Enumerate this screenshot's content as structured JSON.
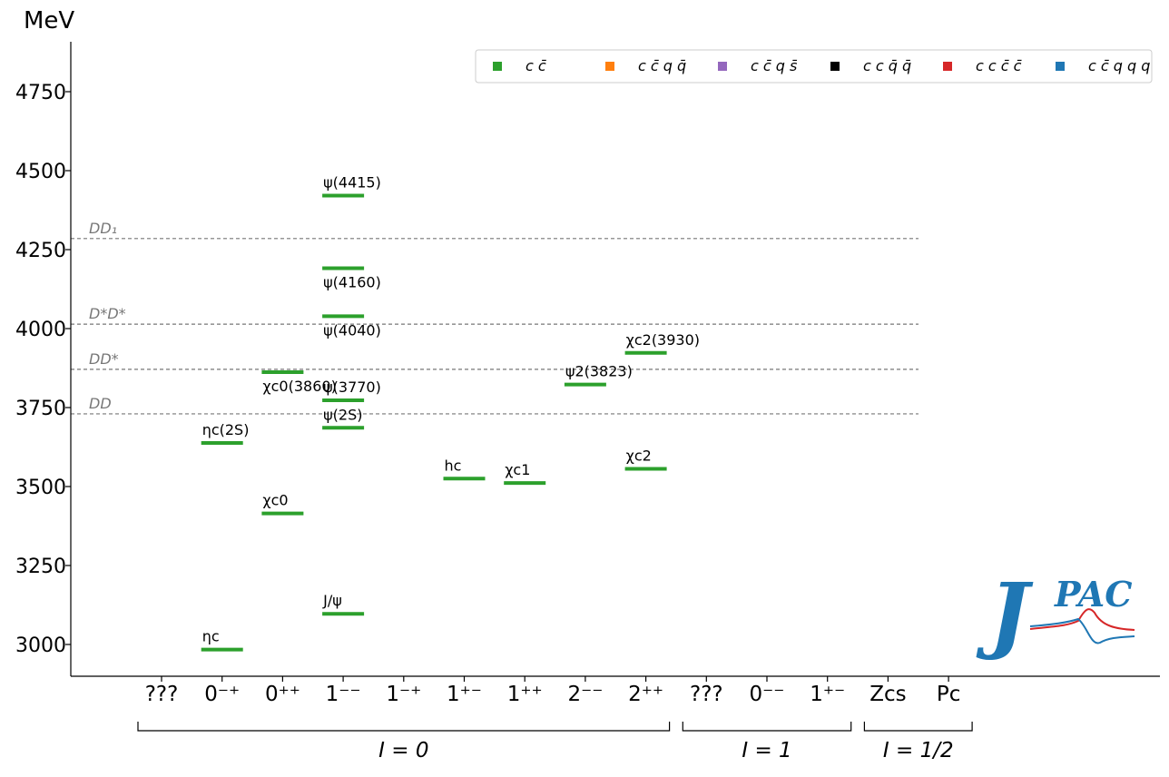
{
  "chart_data": {
    "type": "level-spectrum",
    "ylabel": "MeV",
    "ylim": [
      2900,
      4890
    ],
    "yticks": [
      3000,
      3250,
      3500,
      3750,
      4000,
      4250,
      4500,
      4750
    ],
    "categories": [
      "???",
      "0⁻⁺",
      "0⁺⁺",
      "1⁻⁻",
      "1⁻⁺",
      "1⁺⁻",
      "1⁺⁺",
      "2⁻⁻",
      "2⁺⁺",
      "???",
      "0⁻⁻",
      "1⁺⁻",
      "Zcs",
      "Pc"
    ],
    "groups": [
      {
        "label": "I = 0",
        "from": 0,
        "to": 8
      },
      {
        "label": "I = 1",
        "from": 9,
        "to": 11
      },
      {
        "label": "I = 1/2",
        "from": 12,
        "to": 13
      }
    ],
    "thresholds": [
      {
        "label": "DD",
        "value": 3730
      },
      {
        "label": "DD*",
        "value": 3871
      },
      {
        "label": "D*D*",
        "value": 4014
      },
      {
        "label": "DD₁",
        "value": 4285
      }
    ],
    "states": [
      {
        "name": "ηc",
        "category": 1,
        "mass": 2984,
        "label_pos": "above"
      },
      {
        "name": "ηc(2S)",
        "category": 1,
        "mass": 3638,
        "label_pos": "above"
      },
      {
        "name": "χc0",
        "category": 2,
        "mass": 3415,
        "label_pos": "above"
      },
      {
        "name": "χc0(3860)",
        "category": 2,
        "mass": 3862,
        "label_pos": "below"
      },
      {
        "name": "J/ψ",
        "category": 3,
        "mass": 3097,
        "label_pos": "above"
      },
      {
        "name": "ψ(2S)",
        "category": 3,
        "mass": 3686,
        "label_pos": "above"
      },
      {
        "name": "ψ(3770)",
        "category": 3,
        "mass": 3773,
        "label_pos": "above"
      },
      {
        "name": "ψ(4040)",
        "category": 3,
        "mass": 4039,
        "label_pos": "below"
      },
      {
        "name": "ψ(4160)",
        "category": 3,
        "mass": 4191,
        "label_pos": "below"
      },
      {
        "name": "ψ(4415)",
        "category": 3,
        "mass": 4421,
        "label_pos": "above"
      },
      {
        "name": "hc",
        "category": 5,
        "mass": 3525,
        "label_pos": "above"
      },
      {
        "name": "χc1",
        "category": 6,
        "mass": 3511,
        "label_pos": "above"
      },
      {
        "name": "ψ2(3823)",
        "category": 7,
        "mass": 3823,
        "label_pos": "above"
      },
      {
        "name": "χc2",
        "category": 8,
        "mass": 3556,
        "label_pos": "above"
      },
      {
        "name": "χc2(3930)",
        "category": 8,
        "mass": 3923,
        "label_pos": "above"
      }
    ],
    "legend": {
      "placement": "top-right",
      "entries": [
        {
          "label": "c c̄",
          "color": "#2ca02c"
        },
        {
          "label": "c c̄ q q̄",
          "color": "#ff7f0e"
        },
        {
          "label": "c c̄ q s̄",
          "color": "#9467bd"
        },
        {
          "label": "c c q̄ q̄",
          "color": "#000000"
        },
        {
          "label": "c c c̄ c̄",
          "color": "#d62728"
        },
        {
          "label": "c c̄ q q q",
          "color": "#1f77b4"
        }
      ]
    },
    "colors": {
      "state": "#2ca02c",
      "threshold": "#777777",
      "axis": "#000000"
    }
  },
  "logo": {
    "text_j": "J",
    "text_pac": "PAC",
    "color_blue": "#1f77b4",
    "color_red": "#d62728"
  }
}
